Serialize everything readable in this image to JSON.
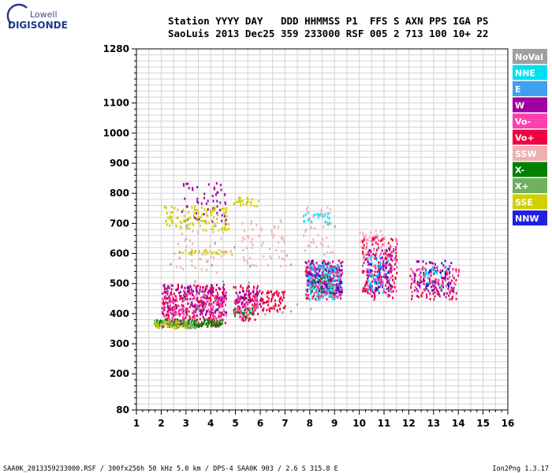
{
  "logo": {
    "line1": "Lowell",
    "line2": "DIGISONDE"
  },
  "header": {
    "row1": "Station YYYY DAY   DDD HHMMSS P1  FFS S AXN PPS IGA PS",
    "row2": "SaoLuis 2013 Dec25 359 233000 RSF 005 2 713 100 10+ 22"
  },
  "footer": {
    "left": "SAA0K_2013359233000.RSF / 300fx256h 50 kHz 5.0 km / DPS-4 SAA0K 903 / 2.6 S 315.8 E",
    "right": "Ion2Png 1.3.17"
  },
  "chart_data": {
    "type": "scatter",
    "title": "",
    "xlabel": "",
    "ylabel": "",
    "xlim": [
      1,
      16
    ],
    "ylim": [
      80,
      1280
    ],
    "x_ticks": [
      1,
      2,
      3,
      4,
      5,
      6,
      7,
      8,
      9,
      10,
      11,
      12,
      13,
      14,
      15,
      16
    ],
    "y_ticks": [
      80,
      200,
      300,
      400,
      500,
      600,
      700,
      800,
      900,
      1000,
      1100,
      1280
    ],
    "grid": true,
    "legend_position": "right",
    "legend": [
      {
        "name": "NoVal",
        "color": "#a0a0a0"
      },
      {
        "name": "NNE",
        "color": "#00e0f0"
      },
      {
        "name": "E",
        "color": "#40a0f0"
      },
      {
        "name": "W",
        "color": "#a000a0"
      },
      {
        "name": "Vo-",
        "color": "#ff40b0"
      },
      {
        "name": "Vo+",
        "color": "#f00040"
      },
      {
        "name": "SSW",
        "color": "#f0b0b0"
      },
      {
        "name": "X-",
        "color": "#008000"
      },
      {
        "name": "X+",
        "color": "#70b060"
      },
      {
        "name": "SSE",
        "color": "#d0d000"
      },
      {
        "name": "NNW",
        "color": "#2020e0"
      }
    ],
    "series": [
      {
        "name": "Vo+",
        "color_index": 5,
        "clusters": [
          [
            2.0,
            4.6,
            360,
            500,
            260
          ],
          [
            4.9,
            5.9,
            380,
            500,
            90
          ],
          [
            6.0,
            7.0,
            410,
            480,
            70
          ],
          [
            7.8,
            9.3,
            450,
            580,
            120
          ],
          [
            10.1,
            11.5,
            450,
            660,
            140
          ],
          [
            12.0,
            14.0,
            450,
            560,
            90
          ]
        ]
      },
      {
        "name": "W",
        "color_index": 3,
        "clusters": [
          [
            2.0,
            4.6,
            400,
            500,
            180
          ],
          [
            2.8,
            4.6,
            700,
            840,
            60
          ],
          [
            5.0,
            6.0,
            420,
            480,
            50
          ],
          [
            7.8,
            9.3,
            470,
            560,
            90
          ],
          [
            10.2,
            11.3,
            460,
            620,
            70
          ],
          [
            12.2,
            13.8,
            460,
            580,
            60
          ]
        ]
      },
      {
        "name": "Vo-",
        "color_index": 4,
        "clusters": [
          [
            2.0,
            4.6,
            380,
            470,
            110
          ],
          [
            4.9,
            5.9,
            390,
            470,
            40
          ],
          [
            7.8,
            9.3,
            450,
            580,
            70
          ],
          [
            10.1,
            11.5,
            460,
            660,
            70
          ],
          [
            12.0,
            14.0,
            470,
            560,
            50
          ]
        ]
      },
      {
        "name": "NNW",
        "color_index": 10,
        "clusters": [
          [
            7.8,
            9.3,
            470,
            580,
            80
          ],
          [
            10.2,
            11.3,
            480,
            600,
            30
          ],
          [
            12.4,
            13.7,
            480,
            580,
            30
          ]
        ]
      },
      {
        "name": "NNE",
        "color_index": 1,
        "clusters": [
          [
            7.9,
            9.2,
            450,
            560,
            70
          ],
          [
            7.7,
            8.8,
            700,
            740,
            25
          ],
          [
            10.3,
            11.2,
            470,
            600,
            25
          ],
          [
            12.5,
            13.6,
            490,
            560,
            20
          ]
        ]
      },
      {
        "name": "E",
        "color_index": 2,
        "clusters": [
          [
            7.9,
            9.2,
            460,
            570,
            40
          ],
          [
            10.3,
            11.1,
            480,
            580,
            20
          ]
        ]
      },
      {
        "name": "X-",
        "color_index": 7,
        "clusters": [
          [
            1.7,
            4.5,
            360,
            385,
            120
          ],
          [
            4.9,
            5.7,
            390,
            420,
            20
          ],
          [
            8.0,
            9.0,
            460,
            530,
            15
          ]
        ]
      },
      {
        "name": "X+",
        "color_index": 8,
        "clusters": [
          [
            1.7,
            3.5,
            355,
            380,
            50
          ],
          [
            8.0,
            9.0,
            470,
            520,
            10
          ]
        ]
      },
      {
        "name": "SSE",
        "color_index": 9,
        "clusters": [
          [
            2.1,
            4.7,
            680,
            760,
            110
          ],
          [
            4.9,
            5.9,
            760,
            790,
            25
          ],
          [
            1.7,
            3.0,
            355,
            380,
            30
          ],
          [
            2.6,
            5.0,
            600,
            615,
            30
          ]
        ]
      },
      {
        "name": "SSW",
        "color_index": 6,
        "clusters": [
          [
            5.2,
            7.0,
            560,
            720,
            60
          ],
          [
            7.7,
            8.9,
            600,
            760,
            40
          ],
          [
            10.0,
            11.0,
            580,
            680,
            40
          ],
          [
            2.5,
            4.6,
            540,
            680,
            40
          ]
        ]
      },
      {
        "name": "NoVal",
        "color_index": 0,
        "clusters": [
          [
            2.0,
            9.0,
            400,
            700,
            40
          ]
        ]
      }
    ]
  }
}
